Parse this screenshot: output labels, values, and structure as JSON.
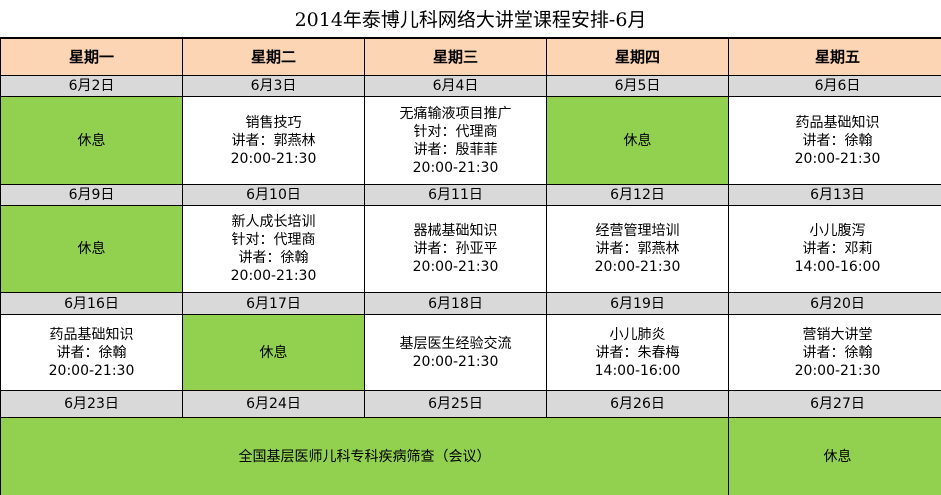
{
  "title": "2014年泰博儿科网络大讲堂课程安排-6月",
  "colors": {
    "header": "#FCD5B4",
    "date_row": "#D9D9D9",
    "rest": "#92D050"
  },
  "weekdays": [
    "星期一",
    "星期二",
    "星期三",
    "星期四",
    "星期五"
  ],
  "weeks": [
    {
      "dates": [
        "6月2日",
        "6月3日",
        "6月4日",
        "6月5日",
        "6月6日"
      ],
      "cells": [
        {
          "rest": true,
          "lines": [
            "休息"
          ]
        },
        {
          "rest": false,
          "lines": [
            "销售技巧",
            "讲者：郭燕林",
            "20:00-21:30"
          ]
        },
        {
          "rest": false,
          "lines": [
            "无痛输液项目推广",
            "针对：代理商",
            "讲者：殷菲菲",
            "20:00-21:30"
          ]
        },
        {
          "rest": true,
          "lines": [
            "休息"
          ]
        },
        {
          "rest": false,
          "lines": [
            "药品基础知识",
            "讲者：徐翰",
            "20:00-21:30"
          ]
        }
      ]
    },
    {
      "dates": [
        "6月9日",
        "6月10日",
        "6月11日",
        "6月12日",
        "6月13日"
      ],
      "cells": [
        {
          "rest": true,
          "lines": [
            "休息"
          ]
        },
        {
          "rest": false,
          "lines": [
            "新人成长培训",
            "针对：代理商",
            "讲者：徐翰",
            "20:00-21:30"
          ]
        },
        {
          "rest": false,
          "lines": [
            "器械基础知识",
            "讲者：孙亚平",
            "20:00-21:30"
          ]
        },
        {
          "rest": false,
          "lines": [
            "经营管理培训",
            "讲者：郭燕林",
            "20:00-21:30"
          ]
        },
        {
          "rest": false,
          "lines": [
            "小儿腹泻",
            "讲者：邓莉",
            "14:00-16:00"
          ]
        }
      ]
    },
    {
      "dates": [
        "6月16日",
        "6月17日",
        "6月18日",
        "6月19日",
        "6月20日"
      ],
      "cells": [
        {
          "rest": false,
          "lines": [
            "药品基础知识",
            "讲者：徐翰",
            "20:00-21:30"
          ]
        },
        {
          "rest": true,
          "lines": [
            "休息"
          ]
        },
        {
          "rest": false,
          "lines": [
            "基层医生经验交流",
            "20:00-21:30"
          ]
        },
        {
          "rest": false,
          "lines": [
            "小儿肺炎",
            "讲者：朱春梅",
            "14:00-16:00"
          ]
        },
        {
          "rest": false,
          "lines": [
            "营销大讲堂",
            "讲者：徐翰",
            "20:00-21:30"
          ]
        }
      ]
    },
    {
      "dates": [
        "6月23日",
        "6月24日",
        "6月25日",
        "6月26日",
        "6月27日"
      ],
      "cells": [
        {
          "rest": true,
          "span": 4,
          "lines": [
            "全国基层医师儿科专科疾病筛查（会议）"
          ]
        },
        {
          "rest": true,
          "lines": [
            "休息"
          ]
        }
      ]
    }
  ]
}
